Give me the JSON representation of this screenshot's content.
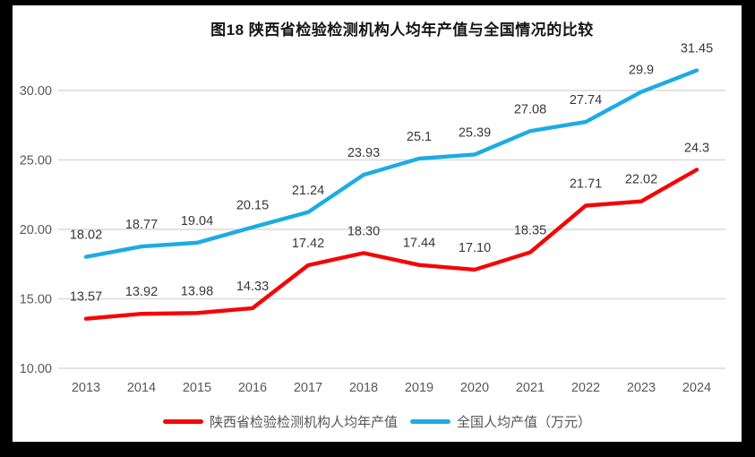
{
  "page": {
    "frame_background": "#000000",
    "card_background": "#ffffff"
  },
  "chart_data": {
    "type": "line",
    "title": "图18 陕西省检验检测机构人均年产值与全国情况的比较",
    "categories": [
      "2013",
      "2014",
      "2015",
      "2016",
      "2017",
      "2018",
      "2019",
      "2020",
      "2021",
      "2022",
      "2023",
      "2024"
    ],
    "series": [
      {
        "name": "陕西省检验检测机构人均年产值",
        "color": "#f50505",
        "values": [
          13.57,
          13.92,
          13.98,
          14.33,
          17.42,
          18.3,
          17.44,
          17.1,
          18.35,
          21.71,
          22.02,
          24.3
        ],
        "labels": [
          "13.57",
          "13.92",
          "13.98",
          "14.33",
          "17.42",
          "18.30",
          "17.44",
          "17.10",
          "18.35",
          "21.71",
          "22.02",
          "24.3"
        ]
      },
      {
        "name": "全国人均产值（万元）",
        "color": "#1dabe3",
        "values": [
          18.02,
          18.77,
          19.04,
          20.15,
          21.24,
          23.93,
          25.1,
          25.39,
          27.08,
          27.74,
          29.9,
          31.45
        ],
        "labels": [
          "18.02",
          "18.77",
          "19.04",
          "20.15",
          "21.24",
          "23.93",
          "25.1",
          "25.39",
          "27.08",
          "27.74",
          "29.9",
          "31.45"
        ]
      }
    ],
    "y_axis": {
      "min": 10,
      "max": 32.5,
      "tick_step": 5,
      "ticks": [
        10,
        15,
        20,
        25,
        30
      ],
      "tick_labels": [
        "10.00",
        "15.00",
        "20.00",
        "25.00",
        "30.00"
      ]
    },
    "grid": true,
    "legend_position": "bottom",
    "colors": {
      "gridline": "#d9d9d9",
      "axis_text": "#595959",
      "data_label": "#383838"
    }
  }
}
